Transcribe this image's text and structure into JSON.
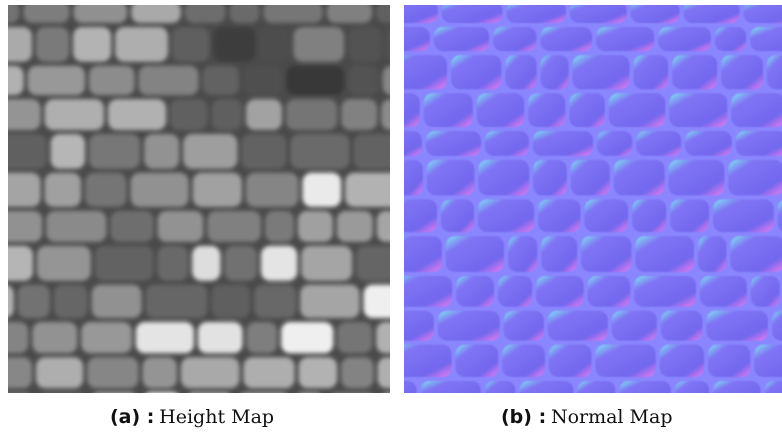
{
  "figures": [
    {
      "label": "(a) :",
      "caption": "Height Map"
    },
    {
      "label": "(b) :",
      "caption": "Normal Map"
    }
  ]
}
